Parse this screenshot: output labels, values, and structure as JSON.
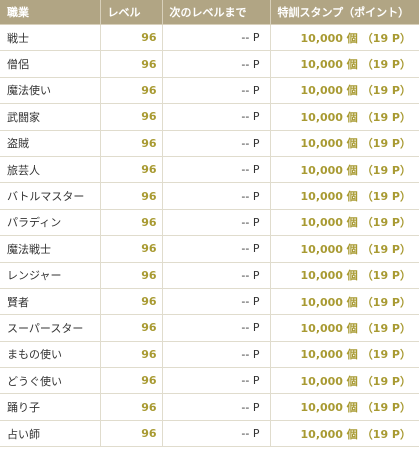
{
  "headers": {
    "job": "職業",
    "level": "レベル",
    "next": "次のレベルまで",
    "stamp": "特訓スタンプ（ポイント）"
  },
  "rows": [
    {
      "job": "戦士",
      "level": "96",
      "next": "-- P",
      "stamps": "10,000 個",
      "points": "（19 P）"
    },
    {
      "job": "僧侶",
      "level": "96",
      "next": "-- P",
      "stamps": "10,000 個",
      "points": "（19 P）"
    },
    {
      "job": "魔法使い",
      "level": "96",
      "next": "-- P",
      "stamps": "10,000 個",
      "points": "（19 P）"
    },
    {
      "job": "武闘家",
      "level": "96",
      "next": "-- P",
      "stamps": "10,000 個",
      "points": "（19 P）"
    },
    {
      "job": "盗賊",
      "level": "96",
      "next": "-- P",
      "stamps": "10,000 個",
      "points": "（19 P）"
    },
    {
      "job": "旅芸人",
      "level": "96",
      "next": "-- P",
      "stamps": "10,000 個",
      "points": "（19 P）"
    },
    {
      "job": "バトルマスター",
      "level": "96",
      "next": "-- P",
      "stamps": "10,000 個",
      "points": "（19 P）"
    },
    {
      "job": "パラディン",
      "level": "96",
      "next": "-- P",
      "stamps": "10,000 個",
      "points": "（19 P）"
    },
    {
      "job": "魔法戦士",
      "level": "96",
      "next": "-- P",
      "stamps": "10,000 個",
      "points": "（19 P）"
    },
    {
      "job": "レンジャー",
      "level": "96",
      "next": "-- P",
      "stamps": "10,000 個",
      "points": "（19 P）"
    },
    {
      "job": "賢者",
      "level": "96",
      "next": "-- P",
      "stamps": "10,000 個",
      "points": "（19 P）"
    },
    {
      "job": "スーパースター",
      "level": "96",
      "next": "-- P",
      "stamps": "10,000 個",
      "points": "（19 P）"
    },
    {
      "job": "まもの使い",
      "level": "96",
      "next": "-- P",
      "stamps": "10,000 個",
      "points": "（19 P）"
    },
    {
      "job": "どうぐ使い",
      "level": "96",
      "next": "-- P",
      "stamps": "10,000 個",
      "points": "（19 P）"
    },
    {
      "job": "踊り子",
      "level": "96",
      "next": "-- P",
      "stamps": "10,000 個",
      "points": "（19 P）"
    },
    {
      "job": "占い師",
      "level": "96",
      "next": "-- P",
      "stamps": "10,000 個",
      "points": "（19 P）"
    }
  ],
  "colors": {
    "header_bg": "#b1a584",
    "header_text": "#ffffff",
    "accent_gold": "#a89a32",
    "body_text": "#333333",
    "grid_line": "#e0dccd"
  }
}
